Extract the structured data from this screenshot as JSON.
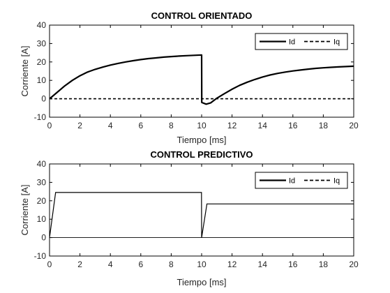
{
  "chart_data": [
    {
      "type": "line",
      "title": "CONTROL ORIENTADO",
      "xlabel": "Tiempo [ms]",
      "ylabel": "Corriente [A]",
      "xlim": [
        0,
        20
      ],
      "ylim": [
        -10,
        40
      ],
      "xticks": [
        0,
        2,
        4,
        6,
        8,
        10,
        12,
        14,
        16,
        18,
        20
      ],
      "yticks": [
        -10,
        0,
        10,
        20,
        30,
        40
      ],
      "grid": false,
      "legend_position": "top-right",
      "series": [
        {
          "name": "Id",
          "style": "solid",
          "x": [
            0,
            0.5,
            1,
            1.5,
            2,
            2.5,
            3,
            3.5,
            4,
            4.5,
            5,
            5.5,
            6,
            6.5,
            7,
            7.5,
            8,
            8.5,
            9,
            9.5,
            10,
            10.01,
            10.3,
            10.6,
            11,
            11.5,
            12,
            12.5,
            13,
            13.5,
            14,
            14.5,
            15,
            15.5,
            16,
            16.5,
            17,
            17.5,
            18,
            18.5,
            19,
            19.5,
            20
          ],
          "values": [
            0,
            3.5,
            7,
            10,
            12.5,
            14.5,
            16,
            17.2,
            18.3,
            19.2,
            20,
            20.7,
            21.3,
            21.8,
            22.2,
            22.6,
            22.9,
            23.2,
            23.4,
            23.6,
            23.8,
            -2,
            -2.9,
            -2.2,
            0.3,
            2.8,
            5.2,
            7.3,
            9,
            10.5,
            11.8,
            12.9,
            13.8,
            14.5,
            15.1,
            15.6,
            16.1,
            16.5,
            16.8,
            17.1,
            17.3,
            17.5,
            17.7
          ]
        },
        {
          "name": "Iq",
          "style": "dashed",
          "x": [
            0,
            20
          ],
          "values": [
            0,
            0
          ]
        }
      ]
    },
    {
      "type": "line",
      "title": "CONTROL PREDICTIVO",
      "xlabel": "Tiempo [ms]",
      "ylabel": "Corriente [A]",
      "xlim": [
        0,
        20
      ],
      "ylim": [
        -10,
        40
      ],
      "xticks": [
        0,
        2,
        4,
        6,
        8,
        10,
        12,
        14,
        16,
        18,
        20
      ],
      "yticks": [
        -10,
        0,
        10,
        20,
        30,
        40
      ],
      "grid": false,
      "legend_position": "top-right",
      "series": [
        {
          "name": "Id",
          "style": "solid",
          "x": [
            0,
            0.4,
            2,
            4,
            6,
            8,
            9.99,
            10,
            10.35,
            12,
            14,
            16,
            18,
            20
          ],
          "values": [
            0,
            24.5,
            24.5,
            24.5,
            24.5,
            24.5,
            24.5,
            0,
            18.3,
            18.3,
            18.3,
            18.3,
            18.3,
            18.3
          ]
        },
        {
          "name": "Iq",
          "style": "dashed",
          "x": [
            0,
            0.4,
            20
          ],
          "values": [
            0,
            0,
            0
          ]
        }
      ]
    }
  ]
}
